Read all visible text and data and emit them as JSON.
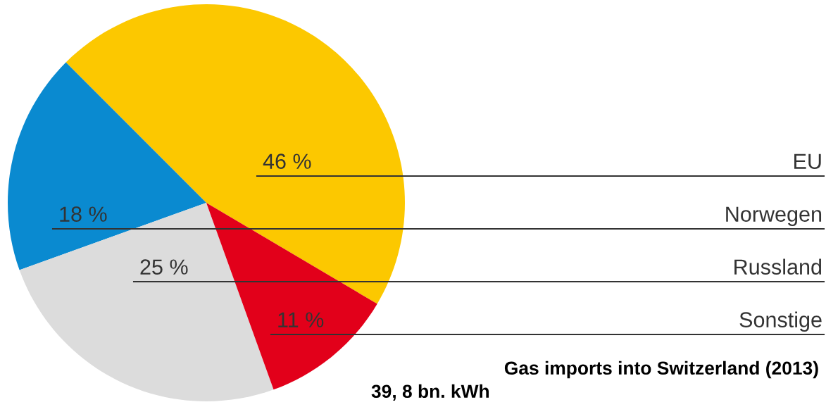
{
  "chart_data": {
    "type": "pie",
    "title": "Gas imports into Switzerland (2013)",
    "subtitle": "39, 8 bn. kWh",
    "categories": [
      "EU",
      "Norwegen",
      "Russland",
      "Sonstige"
    ],
    "values": [
      46,
      18,
      25,
      11
    ],
    "value_labels": [
      "46 %",
      "18 %",
      "25 %",
      "11 %"
    ],
    "colors": [
      "#fcc800",
      "#0a8ad0",
      "#dcdcdc",
      "#e2001a"
    ]
  }
}
